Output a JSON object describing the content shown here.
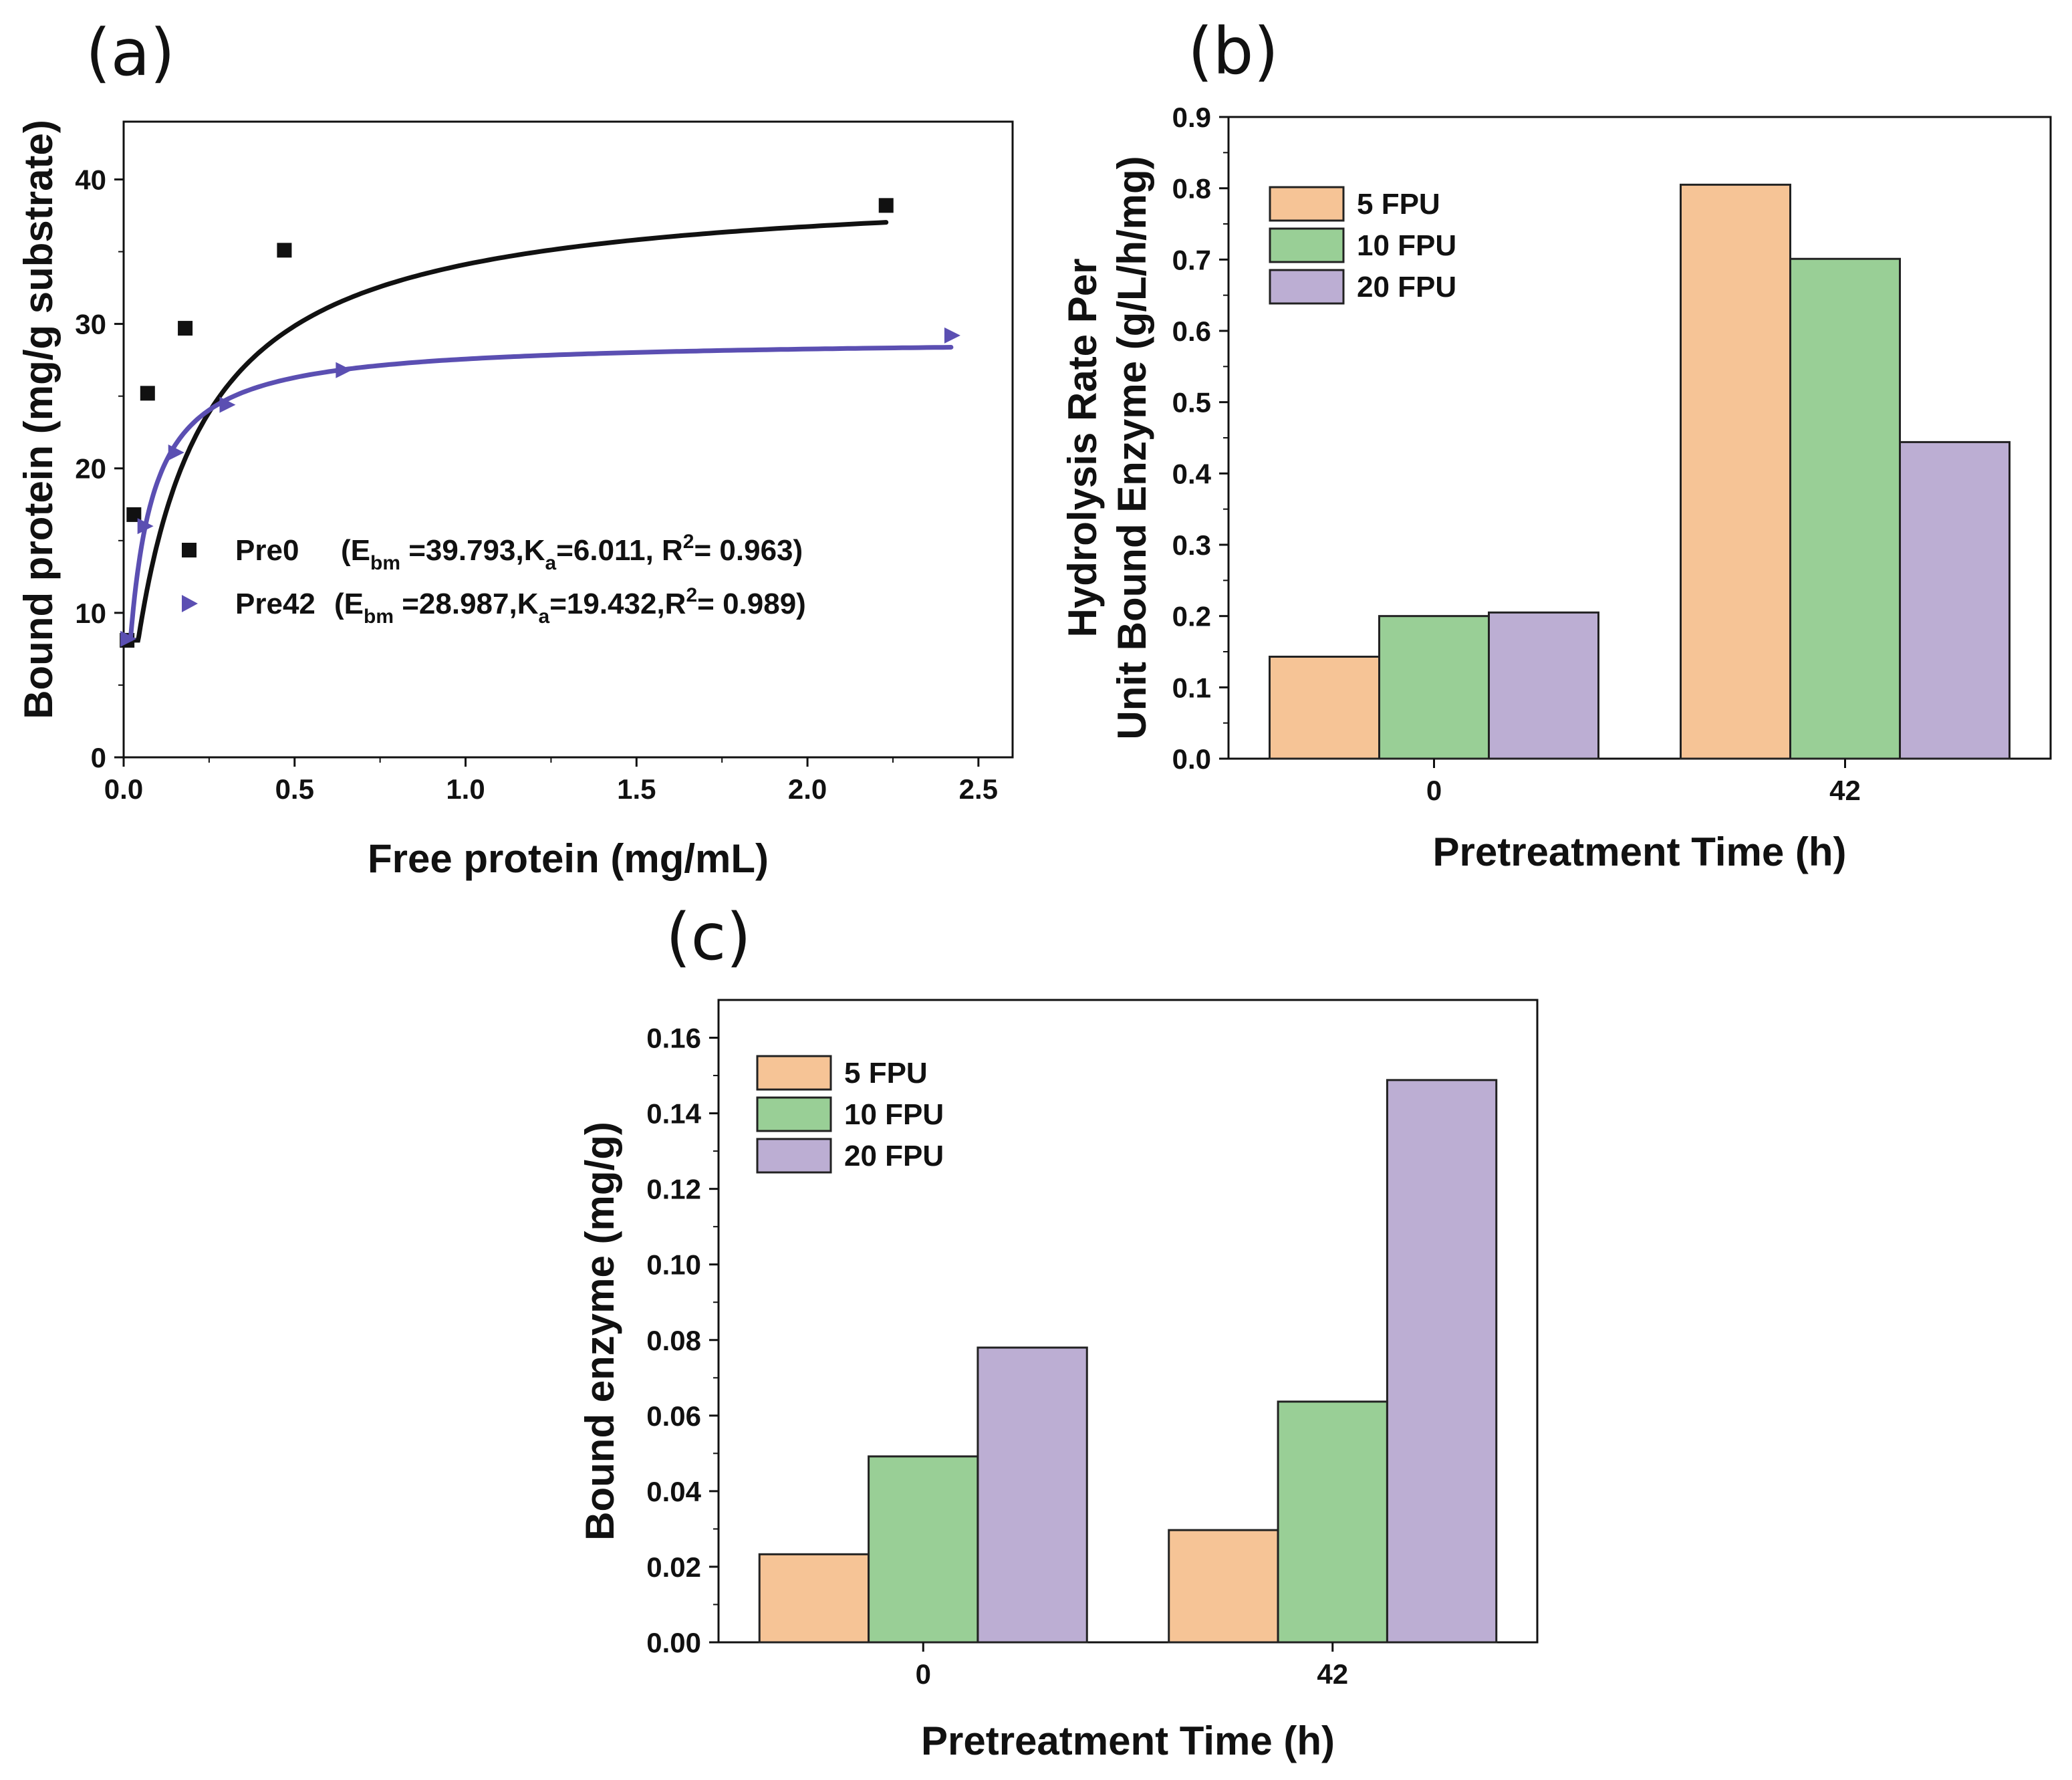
{
  "chart_data": [
    {
      "id": "a",
      "panel_label": "(a)",
      "type": "scatter",
      "xlabel": "Free protein (mg/mL)",
      "ylabel": "Bound protein (mg/g substrate)",
      "xlim": [
        0.0,
        2.6
      ],
      "ylim": [
        0,
        44
      ],
      "xticks": [
        "0.0",
        "0.5",
        "1.0",
        "1.5",
        "2.0",
        "2.5"
      ],
      "yticks": [
        "0",
        "10",
        "20",
        "30",
        "40"
      ],
      "legend_position": "center-right",
      "series": [
        {
          "name": "Pre0",
          "label_parts": [
            "Pre0",
            "(E",
            "bm",
            " =39.793,K",
            "a",
            "=6.011,  R",
            "2",
            "= 0.963)"
          ],
          "marker": "square",
          "color": "#111111",
          "fit": {
            "Ebm": 39.793,
            "Ka": 6.011,
            "R2": 0.963
          },
          "points": [
            {
              "x": 0.01,
              "y": 8.1
            },
            {
              "x": 0.03,
              "y": 16.8
            },
            {
              "x": 0.07,
              "y": 25.2
            },
            {
              "x": 0.18,
              "y": 29.7
            },
            {
              "x": 0.47,
              "y": 35.1
            },
            {
              "x": 2.23,
              "y": 38.2
            }
          ]
        },
        {
          "name": "Pre42",
          "label_parts": [
            "Pre42",
            "(E",
            "bm",
            " =28.987,K",
            "a",
            "=19.432,R",
            "2",
            "= 0.989)"
          ],
          "marker": "triangle-right",
          "color": "#5b4fb2",
          "fit": {
            "Ebm": 28.987,
            "Ka": 19.432,
            "R2": 0.989
          },
          "points": [
            {
              "x": 0.01,
              "y": 8.2
            },
            {
              "x": 0.06,
              "y": 16.0
            },
            {
              "x": 0.15,
              "y": 21.1
            },
            {
              "x": 0.3,
              "y": 24.4
            },
            {
              "x": 0.64,
              "y": 26.8
            },
            {
              "x": 2.42,
              "y": 29.2
            }
          ]
        }
      ]
    },
    {
      "id": "b",
      "panel_label": "(b)",
      "type": "bar",
      "xlabel": "Pretreatment Time (h)",
      "ylabel": [
        "Hydrolysis Rate Per",
        "Unit Bound Enzyme (g/L/h/mg)"
      ],
      "categories": [
        "0",
        "42"
      ],
      "ylim": [
        0.0,
        0.9
      ],
      "yticks": [
        "0.0",
        "0.1",
        "0.2",
        "0.3",
        "0.4",
        "0.5",
        "0.6",
        "0.7",
        "0.8",
        "0.9"
      ],
      "legend_position": "top-left",
      "series": [
        {
          "name": "5 FPU",
          "color": "#f6c496",
          "values": [
            0.143,
            0.805
          ]
        },
        {
          "name": "10 FPU",
          "color": "#99cf96",
          "values": [
            0.2,
            0.701
          ]
        },
        {
          "name": "20 FPU",
          "color": "#bcaed3",
          "values": [
            0.205,
            0.444
          ]
        }
      ]
    },
    {
      "id": "c",
      "panel_label": "(c)",
      "type": "bar",
      "xlabel": "Pretreatment Time (h)",
      "ylabel": "Bound enzyme (mg/g)",
      "categories": [
        "0",
        "42"
      ],
      "ylim": [
        0.0,
        0.17
      ],
      "yticks": [
        "0.00",
        "0.02",
        "0.04",
        "0.06",
        "0.08",
        "0.10",
        "0.12",
        "0.14",
        "0.16"
      ],
      "legend_position": "top-left",
      "series": [
        {
          "name": "5 FPU",
          "color": "#f6c496",
          "values": [
            0.0233,
            0.0297
          ]
        },
        {
          "name": "10 FPU",
          "color": "#99cf96",
          "values": [
            0.0492,
            0.0637
          ]
        },
        {
          "name": "20 FPU",
          "color": "#bcaed3",
          "values": [
            0.078,
            0.1488
          ]
        }
      ]
    }
  ]
}
